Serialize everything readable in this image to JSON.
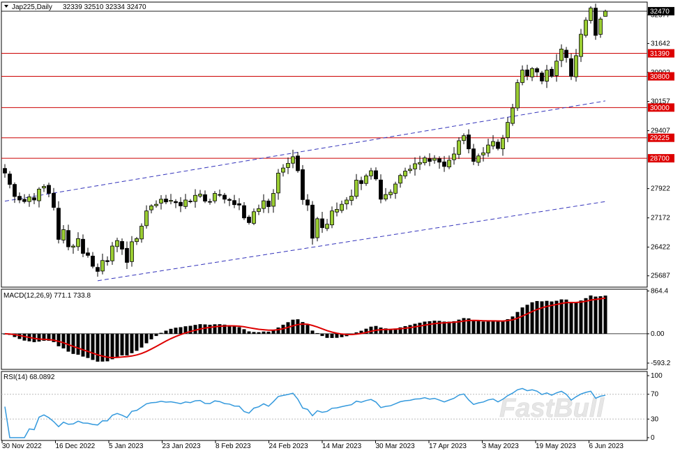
{
  "header": {
    "symbol": "Jap225,Daily",
    "ohlc": "32339 32510 32334 32470"
  },
  "watermark": "FastBull",
  "colors": {
    "bull_body": "#9acd32",
    "bear_body": "#000000",
    "wick": "#000000",
    "level_line": "#cc0000",
    "level_label_bg": "#dd0000",
    "current_label_bg": "#000000",
    "channel": "#3333bb",
    "macd_hist": "#000000",
    "macd_signal": "#dd0000",
    "rsi_line": "#3399dd",
    "grid": "#bbbbbb"
  },
  "chart_data": [
    {
      "type": "candlestick",
      "name": "price",
      "x_ticks": [
        "30 Nov 2022",
        "16 Dec 2022",
        "5 Jan 2023",
        "23 Jan 2023",
        "8 Feb 2023",
        "24 Feb 2023",
        "14 Mar 2023",
        "30 Mar 2023",
        "17 Apr 2023",
        "3 May 2023",
        "19 May 2023",
        "6 Jun 2023"
      ],
      "y_ticks": [
        25687,
        26422,
        27172,
        27922,
        29407,
        30157,
        30902,
        31642,
        32377
      ],
      "ylim": [
        25450,
        32650
      ],
      "current_price": 32470,
      "levels": [
        31390,
        30800,
        30000,
        29225,
        28700
      ],
      "channel_upper": [
        [
          0,
          27600
        ],
        [
          123,
          30170
        ]
      ],
      "channel_lower": [
        [
          19,
          25560
        ],
        [
          123,
          27590
        ]
      ],
      "close": [
        28320,
        28030,
        27720,
        27630,
        27590,
        27710,
        27630,
        27910,
        27980,
        27800,
        27440,
        26620,
        26870,
        26430,
        26450,
        26640,
        26260,
        26210,
        25930,
        25800,
        26080,
        26050,
        26450,
        26590,
        26370,
        26030,
        26560,
        26640,
        26960,
        27350,
        27480,
        27520,
        27650,
        27580,
        27620,
        27560,
        27480,
        27630,
        27590,
        27750,
        27780,
        27600,
        27590,
        27800,
        27760,
        27650,
        27620,
        27510,
        27500,
        27170,
        27050,
        27330,
        27410,
        27610,
        27460,
        27800,
        28320,
        28450,
        28570,
        28740,
        28380,
        27640,
        27500,
        26650,
        27150,
        26920,
        27010,
        27350,
        27390,
        27520,
        27630,
        27730,
        28140,
        28050,
        28250,
        28380,
        28170,
        27650,
        27770,
        27830,
        28040,
        28260,
        28370,
        28420,
        28560,
        28590,
        28710,
        28620,
        28700,
        28600,
        28490,
        28650,
        28810,
        29150,
        29280,
        28940,
        28620,
        28760,
        28840,
        29040,
        29130,
        28950,
        29210,
        29620,
        29990,
        30640,
        30960,
        30810,
        31000,
        30910,
        30680,
        30960,
        30800,
        31190,
        31500,
        31280,
        30800,
        31330,
        31880,
        32240,
        32550,
        31850,
        32270,
        32470
      ],
      "ohlc_current": {
        "open": 32339,
        "high": 32510,
        "low": 32334,
        "close": 32470
      }
    },
    {
      "type": "bar",
      "name": "MACD(12,26,9)",
      "label": "MACD(12,26,9) 771.1 733.8",
      "y_ticks": [
        864.4,
        0.0,
        -593.2
      ],
      "ylim": [
        -720,
        900
      ],
      "macd_fast": 12,
      "macd_slow": 26,
      "macd_signal": 9,
      "last_macd": 771.1,
      "last_signal": 733.8
    },
    {
      "type": "line",
      "name": "RSI(14)",
      "label": "RSI(14) 68.0892",
      "y_ticks": [
        100,
        70,
        30,
        0
      ],
      "ylim": [
        0,
        100
      ],
      "period": 14,
      "last_value": 68.0892
    }
  ]
}
